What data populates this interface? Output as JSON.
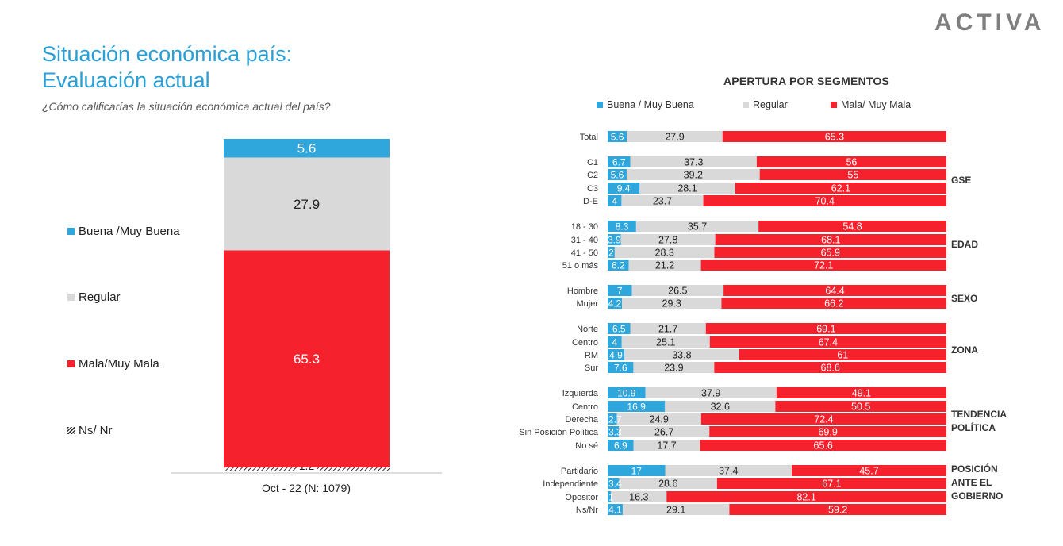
{
  "brand": "ACTIVA",
  "title_line1": "Situación económica país:",
  "title_line2": "Evaluación actual",
  "question": "¿Cómo calificarías la situación económica actual del país?",
  "colors": {
    "buena": "#2fa6dc",
    "regular": "#d9d9d9",
    "mala": "#f5222d",
    "title": "#2a9fd6"
  },
  "legend_left": [
    {
      "label": "Buena /Muy Buena",
      "color": "#2fa6dc"
    },
    {
      "label": "Regular",
      "color": "#d9d9d9"
    },
    {
      "label": "Mala/Muy Mala",
      "color": "#f5222d"
    },
    {
      "label": "Ns/ Nr",
      "color": "hatch"
    }
  ],
  "right_title": "APERTURA POR SEGMENTOS",
  "legend_right": [
    {
      "label": "Buena / Muy Buena",
      "color": "#2fa6dc"
    },
    {
      "label": "Regular",
      "color": "#d9d9d9"
    },
    {
      "label": "Mala/ Muy Mala",
      "color": "#f5222d"
    }
  ],
  "chart_data": [
    {
      "type": "bar",
      "stacked": true,
      "categories": [
        "Oct - 22 (N: 1079)"
      ],
      "series": [
        {
          "name": "Ns/ Nr",
          "values": [
            1.2
          ]
        },
        {
          "name": "Mala/Muy Mala",
          "values": [
            65.3
          ]
        },
        {
          "name": "Regular",
          "values": [
            27.9
          ]
        },
        {
          "name": "Buena /Muy Buena",
          "values": [
            5.6
          ]
        }
      ],
      "legend": "left"
    },
    {
      "type": "bar",
      "orientation": "horizontal",
      "stacked": true,
      "title": "APERTURA POR SEGMENTOS",
      "groups": [
        {
          "label": "",
          "rows": [
            {
              "label": "Total",
              "buena": 5.6,
              "regular": 27.9,
              "mala": 65.3
            }
          ]
        },
        {
          "label": "GSE",
          "rows": [
            {
              "label": "C1",
              "buena": 6.7,
              "regular": 37.3,
              "mala": 56
            },
            {
              "label": "C2",
              "buena": 5.6,
              "regular": 39.2,
              "mala": 55
            },
            {
              "label": "C3",
              "buena": 9.4,
              "regular": 28.1,
              "mala": 62.1
            },
            {
              "label": "D-E",
              "buena": 4,
              "regular": 23.7,
              "mala": 70.4
            }
          ]
        },
        {
          "label": "EDAD",
          "rows": [
            {
              "label": "18 - 30",
              "buena": 8.3,
              "regular": 35.7,
              "mala": 54.8
            },
            {
              "label": "31 - 40",
              "buena": 3.9,
              "regular": 27.8,
              "mala": 68.1
            },
            {
              "label": "41 - 50",
              "buena": 2,
              "regular": 28.3,
              "mala": 65.9
            },
            {
              "label": "51 o más",
              "buena": 6.2,
              "regular": 21.2,
              "mala": 72.1
            }
          ]
        },
        {
          "label": "SEXO",
          "rows": [
            {
              "label": "Hombre",
              "buena": 7,
              "regular": 26.5,
              "mala": 64.4
            },
            {
              "label": "Mujer",
              "buena": 4.2,
              "regular": 29.3,
              "mala": 66.2
            }
          ]
        },
        {
          "label": "ZONA",
          "rows": [
            {
              "label": "Norte",
              "buena": 6.5,
              "regular": 21.7,
              "mala": 69.1
            },
            {
              "label": "Centro",
              "buena": 4,
              "regular": 25.1,
              "mala": 67.4
            },
            {
              "label": "RM",
              "buena": 4.9,
              "regular": 33.8,
              "mala": 61
            },
            {
              "label": "Sur",
              "buena": 7.6,
              "regular": 23.9,
              "mala": 68.6
            }
          ]
        },
        {
          "label": "TENDENCIA POLÍTICA",
          "label_lines": [
            "TENDENCIA",
            "POLÍTICA"
          ],
          "rows": [
            {
              "label": "Izquierda",
              "buena": 10.9,
              "regular": 37.9,
              "mala": 49.1
            },
            {
              "label": "Centro",
              "buena": 16.9,
              "regular": 32.6,
              "mala": 50.5
            },
            {
              "label": "Derecha",
              "buena": 2.7,
              "regular": 24.9,
              "mala": 72.4
            },
            {
              "label": "Sin Posición Política",
              "buena": 3.3,
              "regular": 26.7,
              "mala": 69.9
            },
            {
              "label": "No sé",
              "buena": 6.9,
              "regular": 17.7,
              "mala": 65.6
            }
          ]
        },
        {
          "label": "POSICIÓN ANTE EL GOBIERNO",
          "label_lines": [
            "POSICIÓN",
            "ANTE EL",
            "GOBIERNO"
          ],
          "rows": [
            {
              "label": "Partidario",
              "buena": 17,
              "regular": 37.4,
              "mala": 45.7
            },
            {
              "label": "Independiente",
              "buena": 3.4,
              "regular": 28.6,
              "mala": 67.1
            },
            {
              "label": "Opositor",
              "buena": 1,
              "regular": 16.3,
              "mala": 82.1
            },
            {
              "label": "Ns/Nr",
              "buena": 4.1,
              "regular": 29.1,
              "mala": 59.2
            }
          ]
        }
      ]
    }
  ]
}
